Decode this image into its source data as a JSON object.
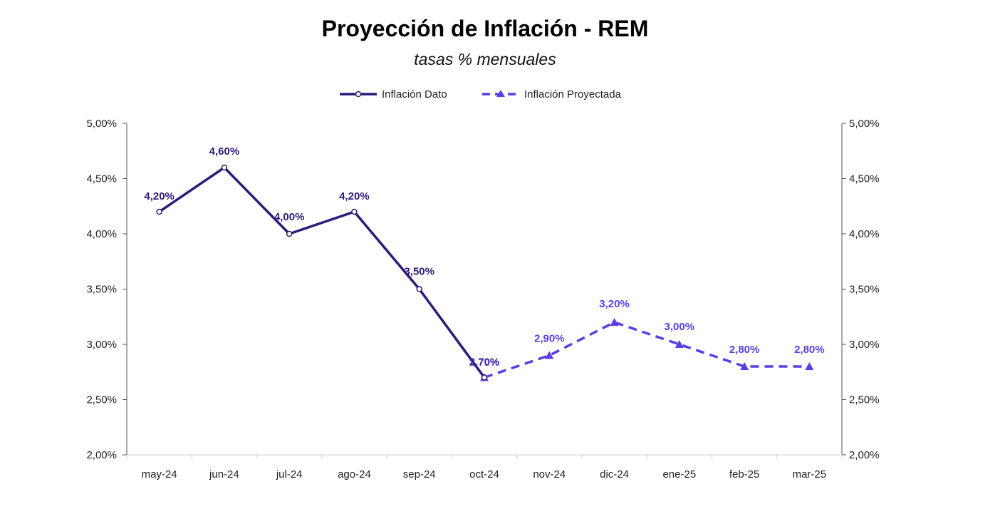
{
  "chart_data": {
    "type": "line",
    "title": "Proyección de Inflación - REM",
    "subtitle": "tasas % mensuales",
    "categories": [
      "may-24",
      "jun-24",
      "jul-24",
      "ago-24",
      "sep-24",
      "oct-24",
      "nov-24",
      "dic-24",
      "ene-25",
      "feb-25",
      "mar-25"
    ],
    "series": [
      {
        "name": "Inflación Dato",
        "values": [
          4.2,
          4.6,
          4.0,
          4.2,
          3.5,
          2.7,
          null,
          null,
          null,
          null,
          null
        ],
        "labels": [
          "4,20%",
          "4,60%",
          "4,00%",
          "4,20%",
          "3,50%",
          "2,70%",
          "",
          "",
          "",
          "",
          ""
        ],
        "color": "#2e1a78",
        "style": "solid",
        "marker": "circle"
      },
      {
        "name": "Inflación Proyectada",
        "values": [
          null,
          null,
          null,
          null,
          null,
          2.7,
          2.9,
          3.2,
          3.0,
          2.8,
          2.8
        ],
        "labels": [
          "",
          "",
          "",
          "",
          "",
          "2,70%",
          "2,90%",
          "3,20%",
          "3,00%",
          "2,80%",
          "2,80%"
        ],
        "color": "#5b3de8",
        "style": "dashed",
        "marker": "triangle"
      }
    ],
    "yticks": [
      "2,00%",
      "2,50%",
      "3,00%",
      "3,50%",
      "4,00%",
      "4,50%",
      "5,00%"
    ],
    "ylim": [
      2.0,
      5.0
    ],
    "y2ticks": [
      "2,00%",
      "2,50%",
      "3,00%",
      "3,50%",
      "4,00%",
      "4,50%",
      "5,00%"
    ],
    "grid": false,
    "legend_position": "top"
  }
}
